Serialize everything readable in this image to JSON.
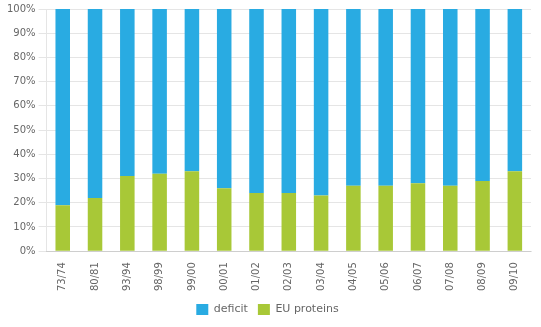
{
  "chart_data": {
    "type": "bar",
    "stacked": true,
    "categories": [
      "73/74",
      "80/81",
      "93/94",
      "98/99",
      "99/00",
      "00/01",
      "01/02",
      "02/03",
      "03/04",
      "04/05",
      "05/06",
      "06/07",
      "07/08",
      "08/09",
      "09/10"
    ],
    "series": [
      {
        "name": "EU proteins",
        "color": "#A8C837",
        "values": [
          19,
          22,
          31,
          32,
          33,
          26,
          24,
          24,
          23,
          27,
          27,
          28,
          27,
          29,
          33
        ]
      },
      {
        "name": "deficit",
        "color": "#29ABE2",
        "values": [
          81,
          78,
          69,
          68,
          67,
          74,
          76,
          76,
          77,
          73,
          73,
          72,
          73,
          71,
          67
        ]
      }
    ],
    "ylim": [
      0,
      100
    ],
    "yticks": [
      {
        "value": 0,
        "label": "0%"
      },
      {
        "value": 10,
        "label": "10%"
      },
      {
        "value": 20,
        "label": "20%"
      },
      {
        "value": 30,
        "label": "30%"
      },
      {
        "value": 40,
        "label": "40%"
      },
      {
        "value": 50,
        "label": "50%"
      },
      {
        "value": 60,
        "label": "60%"
      },
      {
        "value": 70,
        "label": "70%"
      },
      {
        "value": 80,
        "label": "80%"
      },
      {
        "value": 90,
        "label": "90%"
      },
      {
        "value": 100,
        "label": "100%"
      }
    ],
    "grid": true,
    "legend": "bottom"
  }
}
